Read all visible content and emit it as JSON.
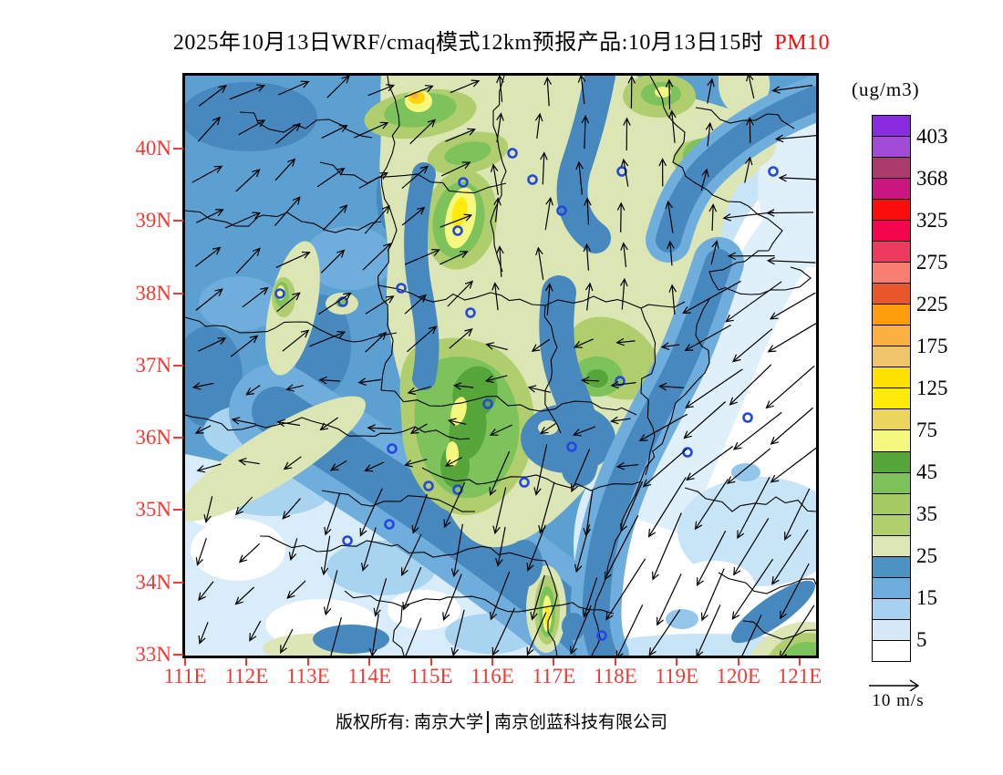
{
  "title": {
    "main": "2025年10月13日WRF/cmaq模式12km预报产品:10月13日15时",
    "pollutant": "PM10"
  },
  "colorbar": {
    "unit_label": "(ug/m3)",
    "tick_labels": [
      "403",
      "368",
      "325",
      "275",
      "225",
      "175",
      "125",
      "75",
      "45",
      "35",
      "25",
      "15",
      "5"
    ],
    "cell_colors_top_to_bottom": [
      "#8A2BE2",
      "#A14BD6",
      "#AD3A6D",
      "#C9177F",
      "#FB0D0D",
      "#F2074E",
      "#EE3A5F",
      "#F97E72",
      "#E8562B",
      "#FF9D0A",
      "#FBB042",
      "#F0C468",
      "#FFE100",
      "#FFEB0B",
      "#EBD55F",
      "#F5F87E",
      "#57A63C",
      "#7EC25C",
      "#A5C963",
      "#B0CE6E",
      "#DCE6B4",
      "#4C92C3",
      "#6FAEDC",
      "#A6D2EF",
      "#D5E9F7",
      "#FFFFFF"
    ]
  },
  "axes": {
    "lat_labels": [
      "40N",
      "39N",
      "38N",
      "37N",
      "36N",
      "35N",
      "34N",
      "33N"
    ],
    "lon_labels": [
      "111E",
      "112E",
      "113E",
      "114E",
      "115E",
      "116E",
      "117E",
      "118E",
      "119E",
      "120E",
      "121E"
    ]
  },
  "wind_legend": {
    "label": "10 m/s"
  },
  "footer": {
    "left": "版权所有: 南京大学",
    "right": "南京创蓝科技有限公司"
  },
  "theme": {
    "axis_label_red": "#EE3B35",
    "pollutant_red": "#FA0A0A"
  }
}
